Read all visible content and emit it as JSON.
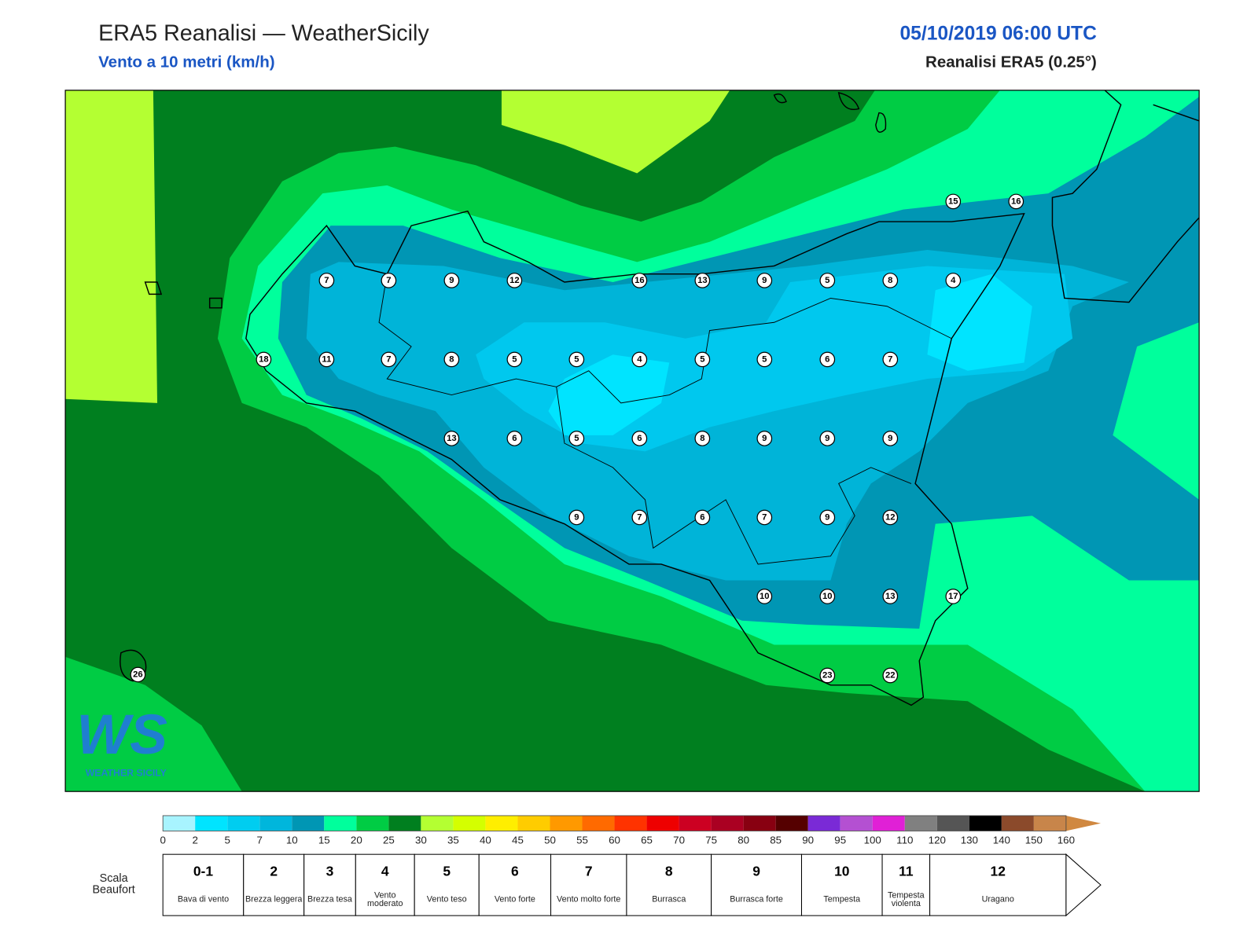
{
  "header": {
    "title": "ERA5 Reanalisi — WeatherSicily",
    "subtitle": "Vento a 10 metri (km/h)",
    "datetime": "05/10/2019 06:00 UTC",
    "source": "Reanalisi ERA5 (0.25°)"
  },
  "stations": [
    7,
    7,
    9,
    12,
    16,
    13,
    9,
    5,
    8,
    4,
    18,
    11,
    7,
    8,
    5,
    5,
    4,
    5,
    5,
    6,
    7,
    13,
    6,
    5,
    6,
    8,
    9,
    9,
    9,
    9,
    7,
    6,
    7,
    9,
    12,
    10,
    10,
    13,
    17,
    23,
    22,
    15,
    16,
    26
  ],
  "logo": {
    "mark": "WS",
    "text": "WEATHER SICILY"
  },
  "colorbar": {
    "ticks": [
      0,
      2,
      5,
      7,
      10,
      15,
      20,
      25,
      30,
      35,
      40,
      45,
      50,
      55,
      60,
      65,
      70,
      75,
      80,
      85,
      90,
      95,
      100,
      110,
      120,
      130,
      140,
      150,
      160
    ],
    "colors": [
      "#a8f4ff",
      "#00e4ff",
      "#00cdf0",
      "#00b6dc",
      "#0096b4",
      "#00ff9c",
      "#00cc44",
      "#007f1f",
      "#b4ff32",
      "#d4ff00",
      "#ffee00",
      "#ffcc00",
      "#ff9900",
      "#ff6a00",
      "#ff3300",
      "#ee0000",
      "#cc0022",
      "#aa0022",
      "#880011",
      "#550000",
      "#7a2ad6",
      "#b450d2",
      "#e020d6",
      "#808080",
      "#555555",
      "#000000",
      "#8b4a2b",
      "#c8854a"
    ],
    "arrow_color": "#d08840"
  },
  "beaufort": {
    "label": "Scala Beaufort",
    "levels": [
      {
        "force": "0-1",
        "name": "Bava di vento"
      },
      {
        "force": "2",
        "name": "Brezza leggera"
      },
      {
        "force": "3",
        "name": "Brezza tesa"
      },
      {
        "force": "4",
        "name": "Vento moderato"
      },
      {
        "force": "5",
        "name": "Vento teso"
      },
      {
        "force": "6",
        "name": "Vento forte"
      },
      {
        "force": "7",
        "name": "Vento molto forte"
      },
      {
        "force": "8",
        "name": "Burrasca"
      },
      {
        "force": "9",
        "name": "Burrasca forte"
      },
      {
        "force": "10",
        "name": "Tempesta"
      },
      {
        "force": "11",
        "name": "Tempesta violenta"
      },
      {
        "force": "12",
        "name": "Uragano"
      }
    ]
  }
}
